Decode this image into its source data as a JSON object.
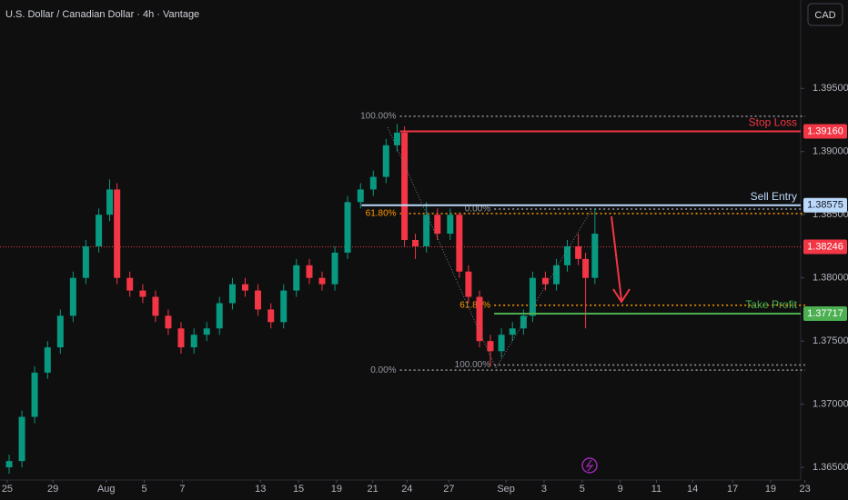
{
  "chart_data": {
    "type": "candlestick",
    "title": "U.S. Dollar / Canadian Dollar · 4h · Vantage",
    "currency": "CAD",
    "up_color": "#089981",
    "down_color": "#f23645",
    "candles": {
      "x": [
        0.1,
        0.77,
        1.44,
        2.12,
        2.79,
        3.46,
        4.13,
        4.81,
        5.38,
        5.77,
        6.44,
        7.12,
        7.79,
        8.46,
        9.13,
        9.81,
        10.48,
        11.15,
        11.83,
        12.5,
        13.17,
        13.85,
        14.52,
        15.19,
        15.87,
        16.54,
        17.21,
        17.88,
        18.56,
        19.23,
        19.9,
        20.48,
        20.87,
        21.44,
        22.02,
        22.6,
        23.27,
        23.75,
        24.23,
        24.81,
        25.38,
        25.96,
        26.54,
        27.12,
        27.6,
        28.27,
        28.85,
        29.42,
        30,
        30.38,
        30.87
      ],
      "open": [
        1.365,
        1.3655,
        1.369,
        1.3725,
        1.3745,
        1.377,
        1.38,
        1.3825,
        1.385,
        1.387,
        1.38,
        1.379,
        1.3785,
        1.377,
        1.376,
        1.3745,
        1.3755,
        1.376,
        1.378,
        1.3795,
        1.379,
        1.3775,
        1.3765,
        1.379,
        1.381,
        1.38,
        1.3795,
        1.382,
        1.386,
        1.387,
        1.388,
        1.3905,
        1.3915,
        1.383,
        1.3825,
        1.385,
        1.3835,
        1.385,
        1.3805,
        1.3785,
        1.375,
        1.3742,
        1.3755,
        1.376,
        1.377,
        1.38,
        1.3795,
        1.381,
        1.3825,
        1.3815,
        1.38
      ],
      "high": [
        1.366,
        1.3695,
        1.373,
        1.375,
        1.3775,
        1.3805,
        1.383,
        1.3855,
        1.3878,
        1.3875,
        1.3805,
        1.3795,
        1.379,
        1.3775,
        1.3765,
        1.376,
        1.3765,
        1.3785,
        1.38,
        1.38,
        1.3795,
        1.378,
        1.3795,
        1.3815,
        1.3815,
        1.3805,
        1.3825,
        1.3865,
        1.3875,
        1.3885,
        1.391,
        1.3922,
        1.392,
        1.3835,
        1.386,
        1.3855,
        1.3855,
        1.3852,
        1.381,
        1.379,
        1.3755,
        1.376,
        1.3765,
        1.3775,
        1.3805,
        1.3805,
        1.3815,
        1.383,
        1.3835,
        1.382,
        1.3855
      ],
      "low": [
        1.3645,
        1.365,
        1.3685,
        1.372,
        1.374,
        1.3765,
        1.3795,
        1.382,
        1.3845,
        1.3795,
        1.3785,
        1.378,
        1.3765,
        1.3755,
        1.374,
        1.374,
        1.375,
        1.3755,
        1.3775,
        1.3785,
        1.377,
        1.376,
        1.376,
        1.3785,
        1.3795,
        1.379,
        1.379,
        1.3815,
        1.3855,
        1.3865,
        1.3875,
        1.39,
        1.3825,
        1.3815,
        1.382,
        1.383,
        1.383,
        1.38,
        1.378,
        1.3745,
        1.373,
        1.3737,
        1.375,
        1.3755,
        1.3765,
        1.379,
        1.379,
        1.3805,
        1.381,
        1.376,
        1.3795
      ],
      "close": [
        1.3655,
        1.369,
        1.3725,
        1.3745,
        1.377,
        1.38,
        1.3825,
        1.385,
        1.387,
        1.38,
        1.379,
        1.3785,
        1.377,
        1.376,
        1.3745,
        1.3755,
        1.376,
        1.378,
        1.3795,
        1.379,
        1.3775,
        1.3765,
        1.379,
        1.381,
        1.38,
        1.3795,
        1.382,
        1.386,
        1.387,
        1.388,
        1.3905,
        1.3915,
        1.383,
        1.3825,
        1.385,
        1.3835,
        1.385,
        1.3805,
        1.3785,
        1.375,
        1.3742,
        1.3755,
        1.376,
        1.377,
        1.38,
        1.3795,
        1.381,
        1.3825,
        1.3815,
        1.38,
        1.3835
      ]
    },
    "xlim": [
      -0.38,
      41.68
    ],
    "ylim": [
      1.364,
      1.402
    ],
    "xticks": [
      {
        "value": 0,
        "label": "25"
      },
      {
        "value": 2.4,
        "label": "29"
      },
      {
        "value": 5.2,
        "label": "Aug"
      },
      {
        "value": 7.2,
        "label": "5"
      },
      {
        "value": 9.2,
        "label": "7"
      },
      {
        "value": 13.3,
        "label": "13"
      },
      {
        "value": 15.3,
        "label": "15"
      },
      {
        "value": 17.3,
        "label": "19"
      },
      {
        "value": 19.2,
        "label": "21"
      },
      {
        "value": 21,
        "label": "24"
      },
      {
        "value": 23.2,
        "label": "27"
      },
      {
        "value": 26.2,
        "label": "Sep"
      },
      {
        "value": 28.2,
        "label": "3"
      },
      {
        "value": 30.2,
        "label": "5"
      },
      {
        "value": 32.2,
        "label": "9"
      },
      {
        "value": 34.1,
        "label": "11"
      },
      {
        "value": 36,
        "label": "14"
      },
      {
        "value": 38.1,
        "label": "17"
      },
      {
        "value": 40.1,
        "label": "19"
      },
      {
        "value": 41.9,
        "label": "23"
      }
    ],
    "yticks": [
      {
        "value": 1.395,
        "label": "1.39500"
      },
      {
        "value": 1.39,
        "label": "1.39000"
      },
      {
        "value": 1.385,
        "label": "1.38500"
      },
      {
        "value": 1.38,
        "label": "1.38000"
      },
      {
        "value": 1.375,
        "label": "1.37500"
      },
      {
        "value": 1.37,
        "label": "1.37000"
      },
      {
        "value": 1.365,
        "label": "1.36500"
      }
    ],
    "levels": [
      {
        "name": "Stop Loss",
        "value": 1.3916,
        "value_label": "1.39160",
        "color": "#f23645",
        "from": 20.63
      },
      {
        "name": "Sell Entry",
        "value": 1.38575,
        "value_label": "1.38575",
        "color": "#bbd9fb",
        "from": 18.61
      },
      {
        "name": "Take Profit",
        "value": 1.37717,
        "value_label": "1.37717",
        "color": "#4caf50",
        "from": 25.58
      }
    ],
    "current_price": {
      "value": 1.38246,
      "value_label": "1.38246",
      "color": "#f23645"
    },
    "fibs": [
      {
        "from": 20.63,
        "levels": [
          {
            "label": "100.00%",
            "value": 1.3928,
            "color": "#9598a1"
          },
          {
            "label": "61.80%",
            "value": 1.3851,
            "color": "#ff9800"
          },
          {
            "label": "0.00%",
            "value": 1.3727,
            "color": "#9598a1"
          }
        ]
      },
      {
        "from": 25.58,
        "levels": [
          {
            "label": "0.00%",
            "value": 1.38545,
            "color": "#9598a1"
          },
          {
            "label": "61.80%",
            "value": 1.37784,
            "color": "#ff9800"
          },
          {
            "label": "100.00%",
            "value": 1.3731,
            "color": "#9598a1"
          }
        ]
      }
    ]
  }
}
